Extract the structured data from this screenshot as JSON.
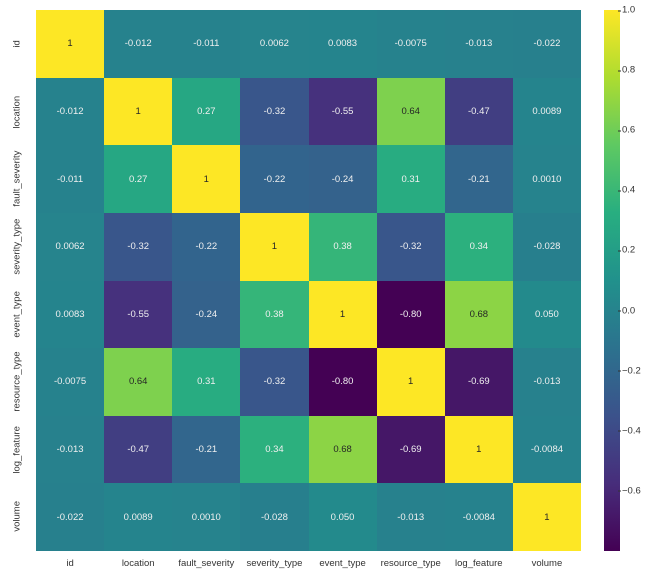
{
  "heatmap": {
    "type": "heatmap",
    "labels": [
      "id",
      "location",
      "fault_severity",
      "severity_type",
      "event_type",
      "resource_type",
      "log_feature",
      "volume"
    ],
    "values": [
      [
        1,
        -0.012,
        -0.011,
        0.0062,
        0.0083,
        -0.0075,
        -0.013,
        -0.022
      ],
      [
        -0.012,
        1,
        0.27,
        -0.32,
        -0.55,
        0.64,
        -0.47,
        0.0089
      ],
      [
        -0.011,
        0.27,
        1,
        -0.22,
        -0.24,
        0.31,
        -0.21,
        0.001
      ],
      [
        0.0062,
        -0.32,
        -0.22,
        1,
        0.38,
        -0.32,
        0.34,
        -0.028
      ],
      [
        0.0083,
        -0.55,
        -0.24,
        0.38,
        1,
        -0.8,
        0.68,
        0.05
      ],
      [
        -0.0075,
        0.64,
        0.31,
        -0.32,
        -0.8,
        1,
        -0.69,
        -0.013
      ],
      [
        -0.013,
        -0.47,
        -0.21,
        0.34,
        0.68,
        -0.69,
        1,
        -0.0084
      ],
      [
        -0.022,
        0.0089,
        0.001,
        -0.028,
        0.05,
        -0.013,
        -0.0084,
        1
      ]
    ],
    "value_fontsize": 9.5,
    "label_fontsize": 9.5,
    "text_color_light": "#f0f0f0",
    "text_color_dark": "#262626",
    "axis_label_color": "#333333",
    "background_color": "#ffffff",
    "vmin": -0.8,
    "vmax": 1.0,
    "colorbar_ticks": [
      -0.6,
      -0.4,
      -0.2,
      0.0,
      0.2,
      0.4,
      0.6,
      0.8,
      1.0
    ],
    "viridis": [
      {
        "stop": 0.0,
        "color": "#440154"
      },
      {
        "stop": 0.125,
        "color": "#472d7b"
      },
      {
        "stop": 0.25,
        "color": "#3b528b"
      },
      {
        "stop": 0.375,
        "color": "#2c728e"
      },
      {
        "stop": 0.5,
        "color": "#21918c"
      },
      {
        "stop": 0.625,
        "color": "#28ae80"
      },
      {
        "stop": 0.75,
        "color": "#5ec962"
      },
      {
        "stop": 0.875,
        "color": "#addc30"
      },
      {
        "stop": 1.0,
        "color": "#fde725"
      }
    ]
  }
}
